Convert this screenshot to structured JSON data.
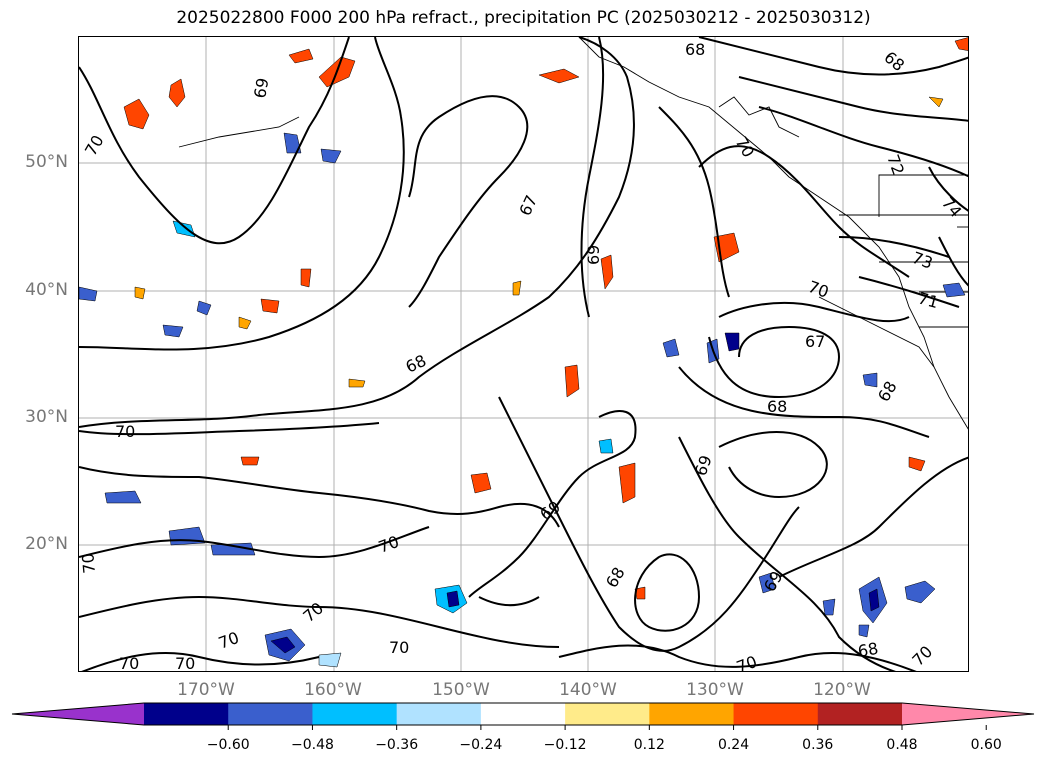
{
  "title": "2025022800 F000 200 hPa refract., precipitation PC (2025030212 - 2025030312)",
  "lat_labels": [
    "50°N",
    "40°N",
    "30°N",
    "20°N"
  ],
  "lon_labels": [
    "170°W",
    "160°W",
    "150°W",
    "140°W",
    "130°W",
    "120°W"
  ],
  "colorbar": {
    "ticks": [
      "−0.60",
      "−0.48",
      "−0.36",
      "−0.24",
      "−0.12",
      "0.12",
      "0.24",
      "0.36",
      "0.48",
      "0.60"
    ],
    "colors": [
      "#9932cc",
      "#00008b",
      "#3a5fcd",
      "#00bfff",
      "#b0e2ff",
      "#ffffff",
      "#ffeb8a",
      "#ffa500",
      "#ff4500",
      "#b22222",
      "#ff88aa"
    ]
  },
  "contour_labels": [
    "70",
    "69",
    "67",
    "69",
    "68",
    "70",
    "68",
    "69",
    "69",
    "68",
    "70",
    "70",
    "70",
    "70",
    "70",
    "70",
    "70",
    "70",
    "67",
    "68",
    "70",
    "71",
    "72",
    "73",
    "74",
    "68",
    "68",
    "69",
    "70",
    "70",
    "68"
  ]
}
